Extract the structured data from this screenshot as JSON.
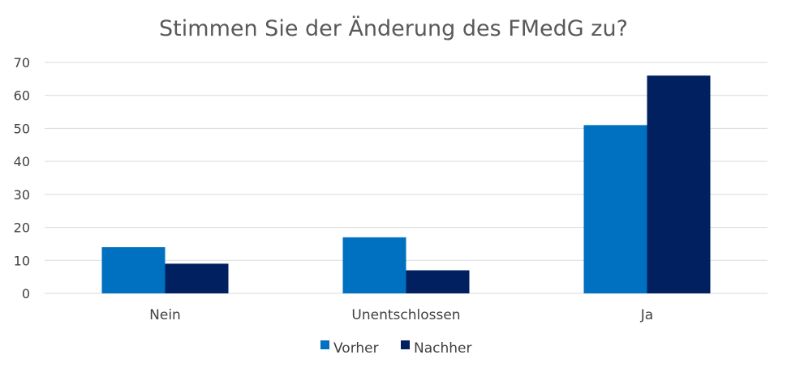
{
  "chart_data": {
    "type": "bar",
    "title": "Stimmen Sie der Änderung des FMedG zu?",
    "xlabel": "",
    "ylabel": "",
    "categories": [
      "Nein",
      "Unentschlossen",
      "Ja"
    ],
    "series": [
      {
        "name": "Vorher",
        "values": [
          14,
          17,
          51
        ],
        "color": "#0070c0"
      },
      {
        "name": "Nachher",
        "values": [
          9,
          7,
          66
        ],
        "color": "#002060"
      }
    ],
    "ylim": [
      0,
      70
    ],
    "yticks": [
      0,
      10,
      20,
      30,
      40,
      50,
      60,
      70
    ],
    "grid": true,
    "legend_position": "bottom"
  }
}
